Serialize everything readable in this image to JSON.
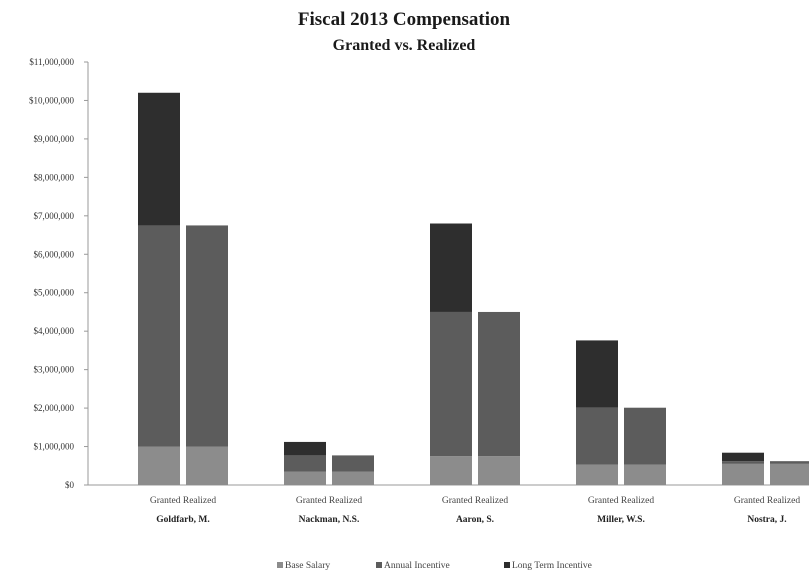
{
  "chart_data": {
    "type": "bar",
    "stacked": true,
    "title": "Fiscal 2013 Compensation",
    "subtitle": "Granted vs. Realized",
    "xlabel": "",
    "ylabel": "",
    "ylim": [
      0,
      11000000
    ],
    "y_ticks": [
      "$0",
      "$1,000,000",
      "$2,000,000",
      "$3,000,000",
      "$4,000,000",
      "$5,000,000",
      "$6,000,000",
      "$7,000,000",
      "$8,000,000",
      "$9,000,000",
      "$10,000,000",
      "$11,000,000"
    ],
    "grid": false,
    "legend_position": "bottom",
    "groups": [
      "Goldfarb, M.",
      "Nackman, N.S.",
      "Aaron, S.",
      "Miller, W.S.",
      "Nostra, J."
    ],
    "bar_labels": [
      "Granted",
      "Realized"
    ],
    "series": [
      {
        "name": "Base Salary",
        "color": "#8c8c8c",
        "values": [
          [
            1000000,
            1000000
          ],
          [
            350000,
            350000
          ],
          [
            750000,
            750000
          ],
          [
            530000,
            530000
          ],
          [
            550000,
            550000
          ]
        ]
      },
      {
        "name": "Annual Incentive",
        "color": "#5c5c5c",
        "values": [
          [
            5750000,
            5750000
          ],
          [
            420000,
            420000
          ],
          [
            3750000,
            3750000
          ],
          [
            1480000,
            1480000
          ],
          [
            70000,
            70000
          ]
        ]
      },
      {
        "name": "Long Term Incentive",
        "color": "#2e2e2e",
        "values": [
          [
            3450000,
            0
          ],
          [
            350000,
            0
          ],
          [
            2300000,
            0
          ],
          [
            1750000,
            0
          ],
          [
            220000,
            0
          ]
        ]
      }
    ]
  }
}
